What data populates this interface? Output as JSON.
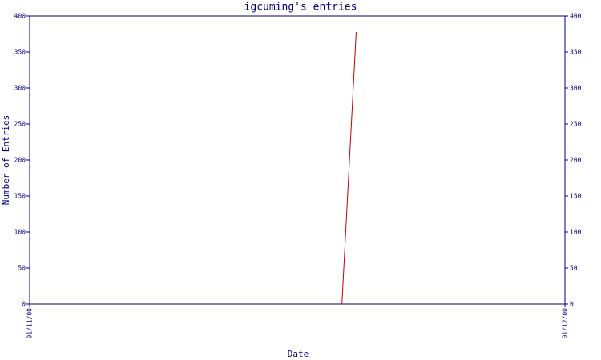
{
  "chart_data": {
    "type": "line",
    "title": "igcuming's entries",
    "x_label": "Date",
    "y_label": "Number of Entries",
    "x": [
      17.5,
      18.3
    ],
    "values": [
      0,
      378
    ],
    "color": "#cc0000",
    "xlim": [
      0,
      30
    ],
    "xticks": [
      {
        "value": 0,
        "label": "01/11/00"
      },
      {
        "value": 30,
        "label": "01/12/00"
      }
    ],
    "ylim": [
      0,
      400
    ],
    "yticks": [
      0,
      50,
      100,
      150,
      200,
      250,
      300,
      350,
      400
    ],
    "y2lim": [
      0,
      400
    ],
    "y2ticks": [
      0,
      50,
      100,
      150,
      200,
      250,
      300,
      350,
      400
    ],
    "axis_color": "#000080",
    "grid": false
  }
}
